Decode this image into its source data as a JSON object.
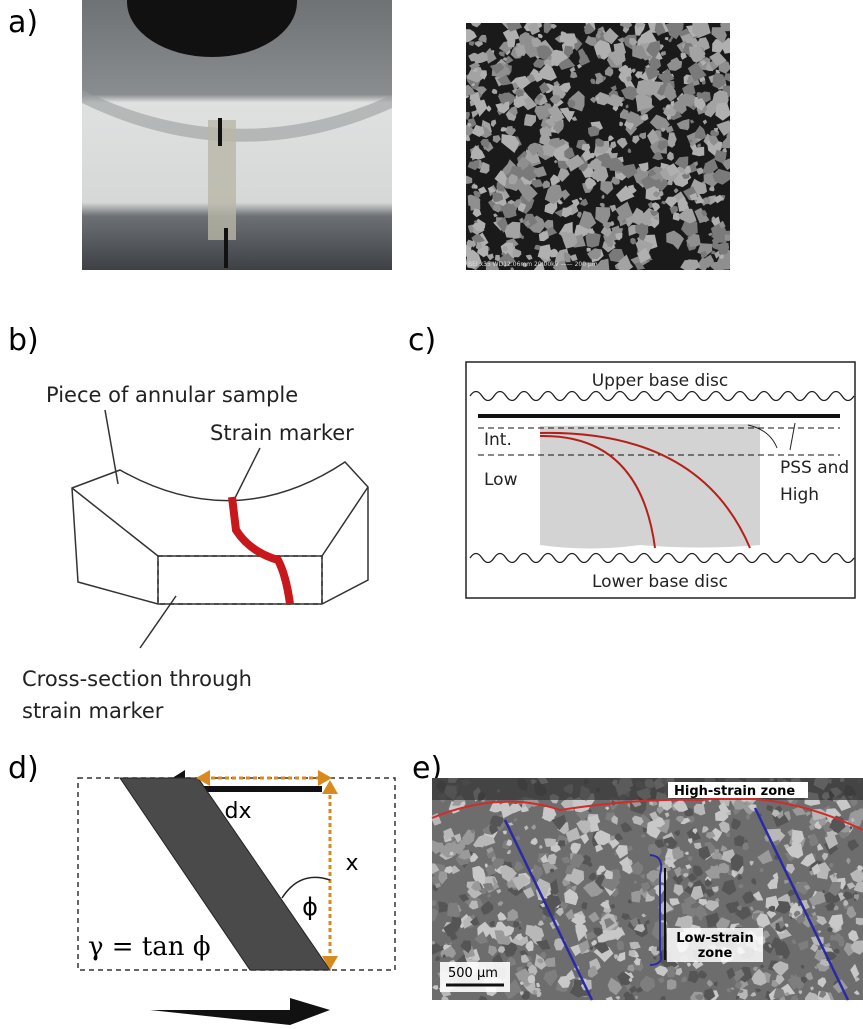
{
  "panels": {
    "a": {
      "label": "a)",
      "sem_caption": "BEI x35 WD12.06mm 20.00kV —— 200 µm"
    },
    "b": {
      "label": "b)",
      "sample_label": "Piece of annular sample",
      "marker_label": "Strain marker",
      "section_label": [
        "Cross-section through",
        "strain marker"
      ]
    },
    "c": {
      "label": "c)",
      "upper": "Upper base disc",
      "int": "Int.",
      "low": "Low",
      "pss": [
        "PSS and",
        "High"
      ],
      "lower": "Lower base disc"
    },
    "d": {
      "label": "d)",
      "dx": "dx",
      "x": "x",
      "phi": "ϕ",
      "gamma": "γ = tan ϕ"
    },
    "e": {
      "label": "e)",
      "high": "High-strain zone",
      "low": [
        "Low-strain",
        "zone"
      ],
      "scale": "500 µm"
    }
  }
}
